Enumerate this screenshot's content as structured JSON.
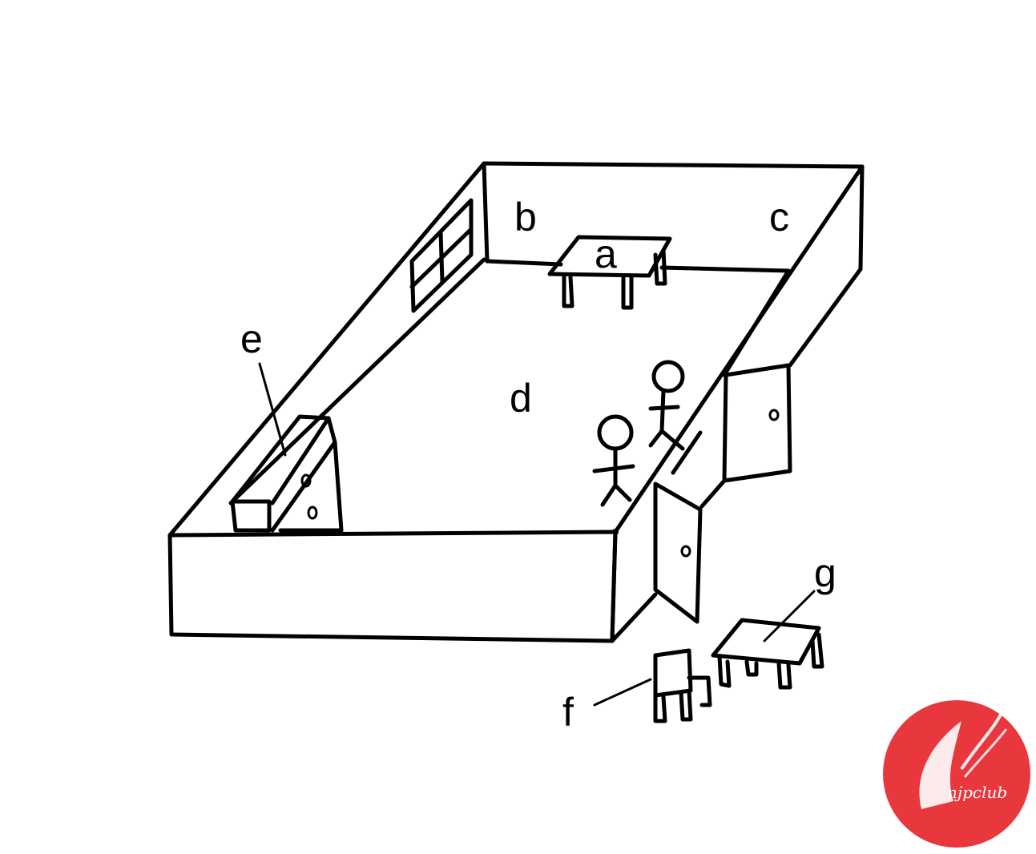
{
  "labels": {
    "a": "a",
    "b": "b",
    "c": "c",
    "d": "d",
    "e": "e",
    "f": "f",
    "g": "g"
  },
  "logo": {
    "text": "njpclub",
    "color": "#e8383d"
  },
  "colors": {
    "ink": "#000000",
    "background": "#ffffff"
  }
}
